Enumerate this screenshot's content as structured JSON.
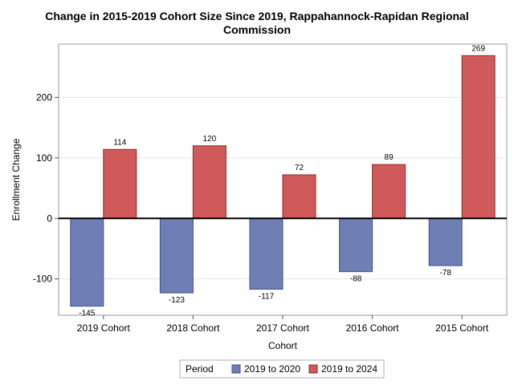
{
  "chart_data": {
    "type": "bar",
    "title_line1": "Change in 2015-2019 Cohort Size Since 2019, Rappahannock-Rapidan Regional",
    "title_line2": "Commission",
    "xlabel": "Cohort",
    "ylabel": "Enrollment Change",
    "categories": [
      "2019 Cohort",
      "2018 Cohort",
      "2017 Cohort",
      "2016 Cohort",
      "2015 Cohort"
    ],
    "series": [
      {
        "name": "2019 to 2020",
        "values": [
          -145,
          -123,
          -117,
          -88,
          -78
        ],
        "color": "#6f7fb5",
        "stroke": "#3f4f8f"
      },
      {
        "name": "2019 to 2024",
        "values": [
          114,
          120,
          72,
          89,
          269
        ],
        "color": "#d05a5a",
        "stroke": "#8f2a2a"
      }
    ],
    "yticks": [
      -100,
      0,
      100,
      200
    ],
    "ylim": [
      -160,
      288
    ],
    "grid": true,
    "legend_title": "Period",
    "legend_position": "bottom"
  }
}
